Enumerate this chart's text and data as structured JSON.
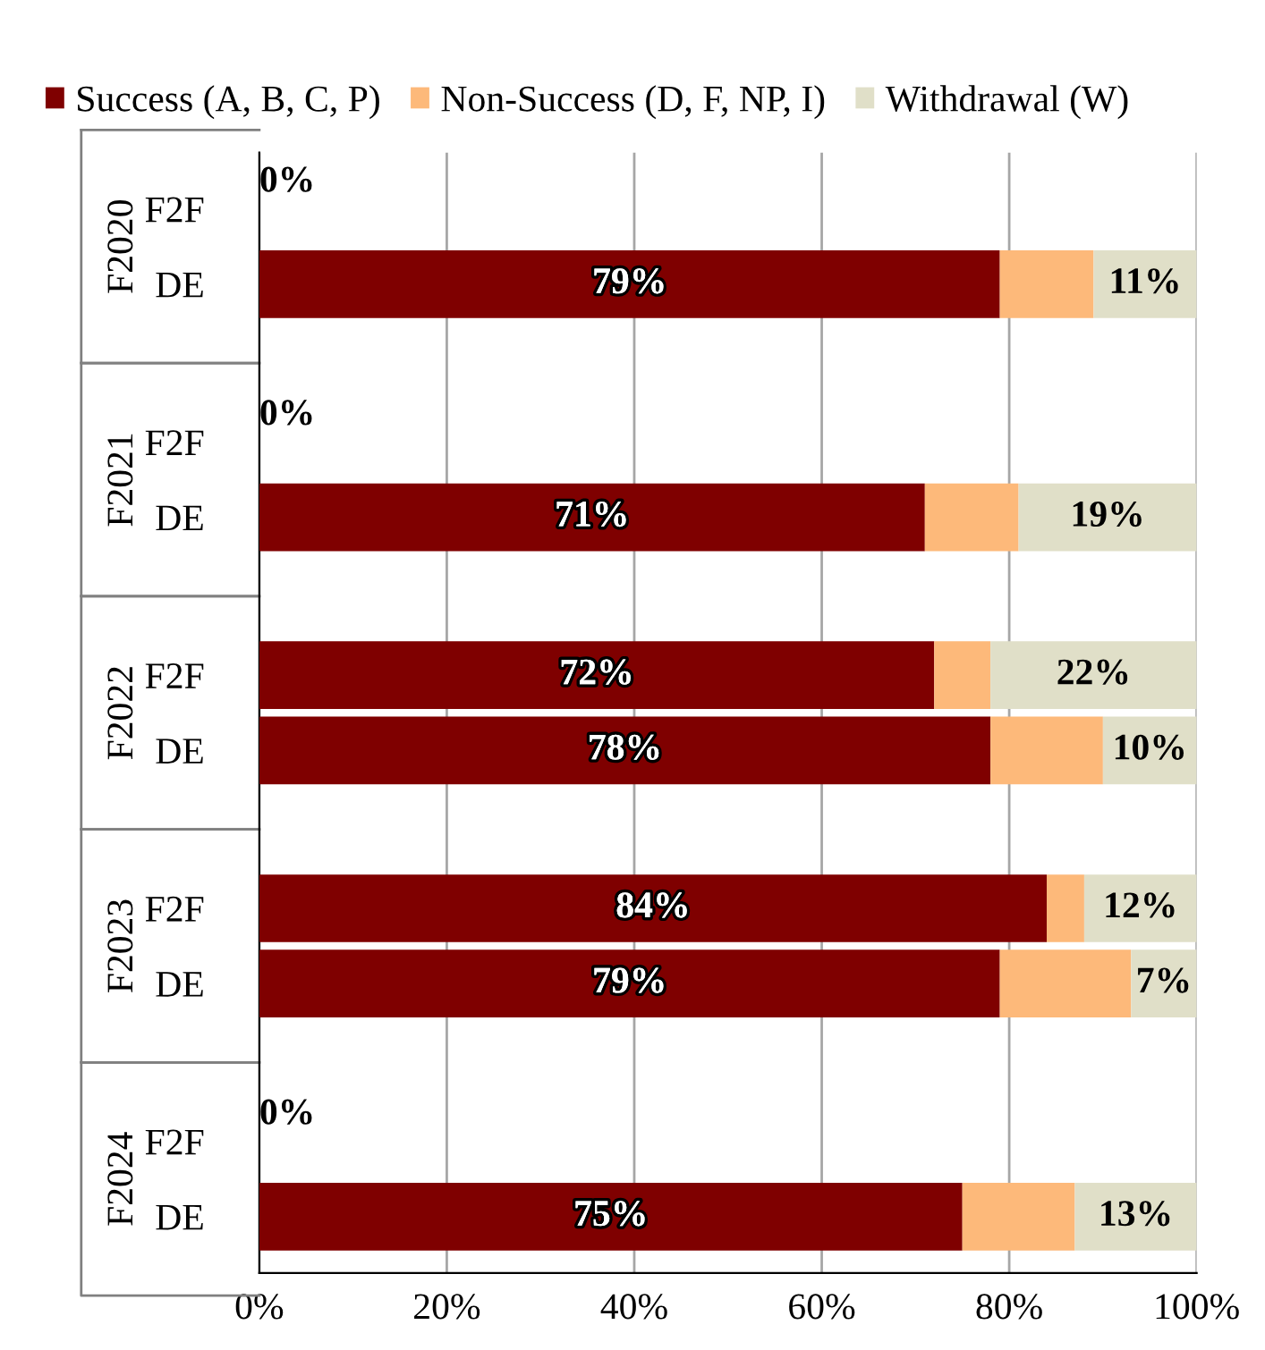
{
  "chart_data": {
    "type": "bar",
    "orientation": "horizontal",
    "stacked": true,
    "categories": [
      "F2F",
      "DE",
      "F2F",
      "DE",
      "F2F",
      "DE",
      "F2F",
      "DE",
      "F2F",
      "DE"
    ],
    "series": [
      {
        "name": "Success (A, B, C, P)",
        "color": "#7f0000",
        "values": [
          0,
          79,
          0,
          71,
          72,
          78,
          84,
          79,
          0,
          75
        ],
        "value_labels": [
          "0%",
          "79%",
          "0%",
          "71%",
          "72%",
          "78%",
          "84%",
          "79%",
          "0%",
          "75%"
        ]
      },
      {
        "name": "Non-Success (D, F, NP, I)",
        "color": "#fdb97a",
        "values": [
          0,
          10,
          0,
          10,
          6,
          12,
          4,
          14,
          0,
          12
        ]
      },
      {
        "name": "Withdrawal (W)",
        "color": "#e0dfc8",
        "values": [
          0,
          11,
          0,
          19,
          22,
          10,
          12,
          7,
          0,
          13
        ],
        "value_labels": [
          null,
          "11%",
          null,
          "19%",
          "22%",
          "10%",
          "12%",
          "7%",
          null,
          "13%"
        ]
      }
    ],
    "annotations": [
      "F2020",
      "F2021",
      "F2022",
      "F2023",
      "F2024"
    ],
    "xlim": [
      0,
      100
    ],
    "xticks": [
      {
        "value": 0,
        "label": "0%"
      },
      {
        "value": 20,
        "label": "20%"
      },
      {
        "value": 40,
        "label": "40%"
      },
      {
        "value": 60,
        "label": "60%"
      },
      {
        "value": 80,
        "label": "80%"
      },
      {
        "value": 100,
        "label": "100%"
      }
    ],
    "grid": "x",
    "legend": "top"
  }
}
